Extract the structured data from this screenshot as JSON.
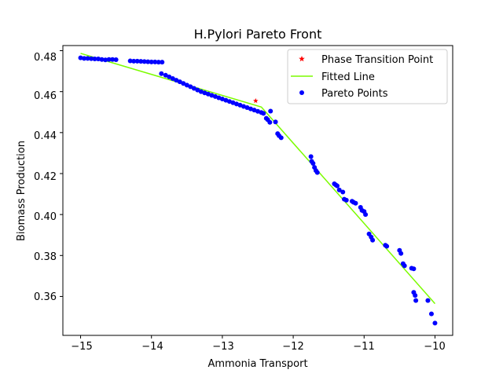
{
  "chart_data": {
    "type": "scatter",
    "title": "H.Pylori Pareto Front",
    "xlabel": "Ammonia Transport",
    "ylabel": "Biomass Production",
    "xlim": [
      -15.25,
      -9.75
    ],
    "ylim": [
      0.341,
      0.4825
    ],
    "xticks": [
      -15,
      -14,
      -13,
      -12,
      -11,
      -10
    ],
    "yticks": [
      0.36,
      0.38,
      0.4,
      0.42,
      0.44,
      0.46,
      0.48
    ],
    "xtick_labels": [
      "−15",
      "−14",
      "−13",
      "−12",
      "−11",
      "−10"
    ],
    "ytick_labels": [
      "0.36",
      "0.38",
      "0.40",
      "0.42",
      "0.44",
      "0.46",
      "0.48"
    ],
    "grid": false,
    "legend_position": "top-right",
    "colors": {
      "pareto": "#0000ff",
      "fitted": "#7cfc00",
      "phase": "#ff0000"
    },
    "legend": [
      "Phase Transition Point",
      "Fitted Line",
      "Pareto Points"
    ],
    "series": [
      {
        "name": "Pareto Points",
        "kind": "scatter",
        "x": [
          -15.0,
          -14.95,
          -14.9,
          -14.85,
          -14.8,
          -14.75,
          -14.7,
          -14.65,
          -14.6,
          -14.55,
          -14.5,
          -14.3,
          -14.25,
          -14.2,
          -14.15,
          -14.1,
          -14.05,
          -14.0,
          -13.95,
          -13.9,
          -13.85,
          -13.86,
          -13.8,
          -13.75,
          -13.7,
          -13.65,
          -13.6,
          -13.55,
          -13.5,
          -13.45,
          -13.4,
          -13.35,
          -13.3,
          -13.25,
          -13.2,
          -13.15,
          -13.1,
          -13.05,
          -13.0,
          -12.95,
          -12.9,
          -12.85,
          -12.8,
          -12.75,
          -12.7,
          -12.65,
          -12.6,
          -12.55,
          -12.5,
          -12.45,
          -12.42,
          -12.38,
          -12.36,
          -12.33,
          -12.32,
          -12.25,
          -12.22,
          -12.2,
          -12.17,
          -11.75,
          -11.74,
          -11.72,
          -11.7,
          -11.68,
          -11.66,
          -11.42,
          -11.4,
          -11.38,
          -11.35,
          -11.3,
          -11.28,
          -11.25,
          -11.17,
          -11.15,
          -11.12,
          -11.05,
          -11.03,
          -11.0,
          -10.98,
          -10.93,
          -10.9,
          -10.88,
          -10.7,
          -10.68,
          -10.5,
          -10.48,
          -10.45,
          -10.43,
          -10.33,
          -10.3,
          -10.3,
          -10.28,
          -10.27,
          -10.1,
          -10.05,
          -10.0
        ],
        "y": [
          0.4765,
          0.4762,
          0.4762,
          0.4761,
          0.476,
          0.476,
          0.4757,
          0.4755,
          0.4757,
          0.4757,
          0.4756,
          0.475,
          0.4749,
          0.4749,
          0.4748,
          0.4747,
          0.4746,
          0.4745,
          0.4745,
          0.4744,
          0.4744,
          0.4688,
          0.468,
          0.4672,
          0.4664,
          0.4656,
          0.4648,
          0.464,
          0.4632,
          0.4624,
          0.4616,
          0.4608,
          0.46,
          0.4594,
          0.4588,
          0.4582,
          0.4576,
          0.457,
          0.4564,
          0.4558,
          0.4552,
          0.4546,
          0.454,
          0.4534,
          0.4528,
          0.4522,
          0.4516,
          0.451,
          0.4504,
          0.4498,
          0.4494,
          0.447,
          0.4463,
          0.445,
          0.4505,
          0.4452,
          0.4395,
          0.4385,
          0.4375,
          0.4283,
          0.426,
          0.425,
          0.423,
          0.4215,
          0.4205,
          0.415,
          0.4145,
          0.414,
          0.412,
          0.411,
          0.4075,
          0.407,
          0.4065,
          0.406,
          0.4055,
          0.4035,
          0.402,
          0.4015,
          0.4,
          0.3905,
          0.389,
          0.3875,
          0.385,
          0.3845,
          0.3825,
          0.381,
          0.376,
          0.375,
          0.3738,
          0.3735,
          0.362,
          0.3605,
          0.358,
          0.358,
          0.3515,
          0.347
        ]
      },
      {
        "name": "Fitted Line",
        "kind": "line",
        "x": [
          -15.0,
          -12.45,
          -10.0
        ],
        "y": [
          0.4787,
          0.4525,
          0.3565
        ]
      },
      {
        "name": "Phase Transition Point",
        "kind": "point",
        "x": [
          -12.53
        ],
        "y": [
          0.4555
        ]
      }
    ]
  }
}
